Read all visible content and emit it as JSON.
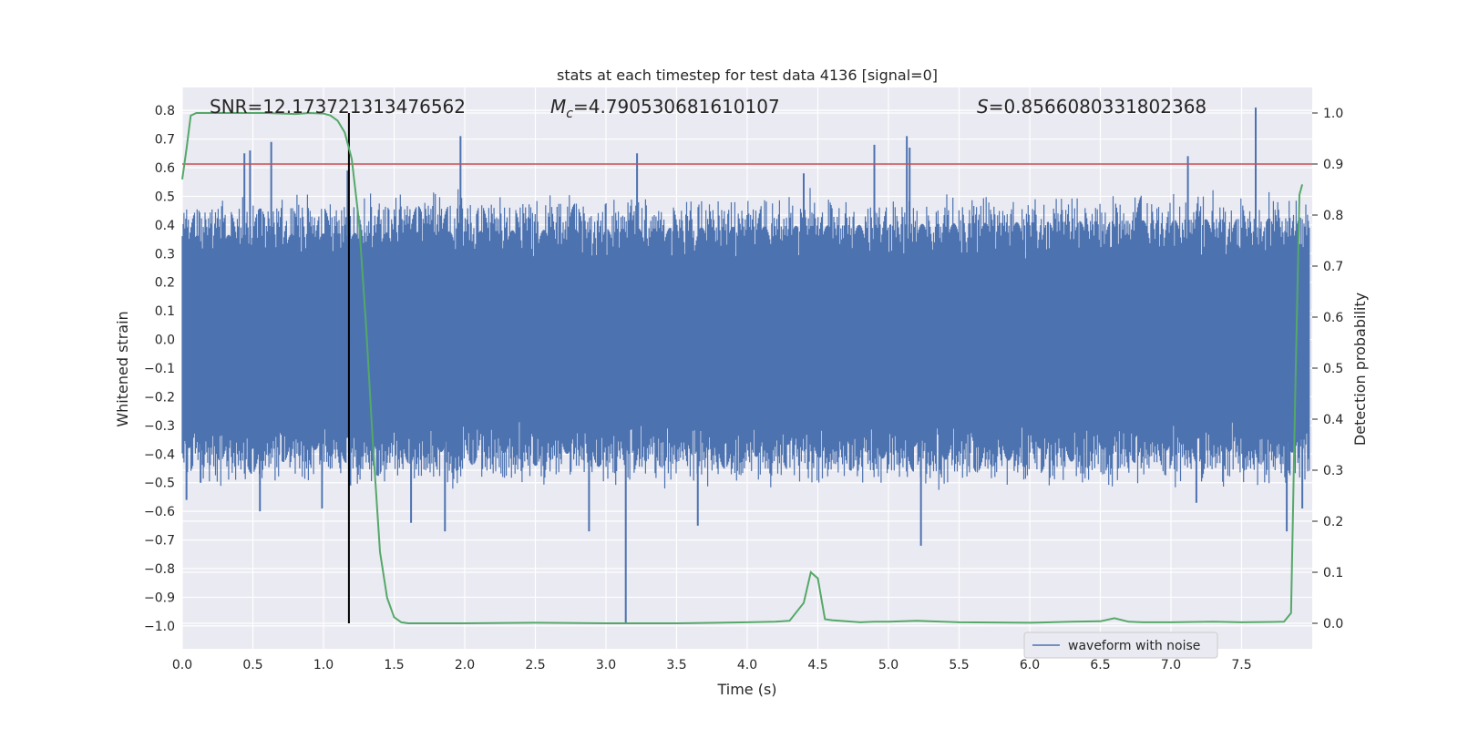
{
  "chart_data": {
    "type": "line",
    "title": "stats at each timestep for test data 4136 [signal=0]",
    "xlabel": "Time (s)",
    "ylabel_left": "Whitened strain",
    "ylabel_right": "Detection probability",
    "xlim": [
      0.0,
      8.0
    ],
    "ylim_left": [
      -1.08,
      0.88
    ],
    "ylim_right": [
      -0.05,
      1.05
    ],
    "x_ticks": [
      "0.0",
      "0.5",
      "1.0",
      "1.5",
      "2.0",
      "2.5",
      "3.0",
      "3.5",
      "4.0",
      "4.5",
      "5.0",
      "5.5",
      "6.0",
      "6.5",
      "7.0",
      "7.5"
    ],
    "x_tick_values": [
      0.0,
      0.5,
      1.0,
      1.5,
      2.0,
      2.5,
      3.0,
      3.5,
      4.0,
      4.5,
      5.0,
      5.5,
      6.0,
      6.5,
      7.0,
      7.5
    ],
    "y_left_ticks": [
      "0.8",
      "0.7",
      "0.6",
      "0.5",
      "0.4",
      "0.3",
      "0.2",
      "0.1",
      "0.0",
      "−0.1",
      "−0.2",
      "−0.3",
      "−0.4",
      "−0.5",
      "−0.6",
      "−0.7",
      "−0.8",
      "−0.9",
      "−1.0"
    ],
    "y_left_tick_values": [
      0.8,
      0.7,
      0.6,
      0.5,
      0.4,
      0.3,
      0.2,
      0.1,
      0.0,
      -0.1,
      -0.2,
      -0.3,
      -0.4,
      -0.5,
      -0.6,
      -0.7,
      -0.8,
      -0.9,
      -1.0
    ],
    "y_right_ticks": [
      "1.0",
      "0.9",
      "0.8",
      "0.7",
      "0.6",
      "0.5",
      "0.4",
      "0.3",
      "0.2",
      "0.1",
      "0.0"
    ],
    "y_right_tick_values": [
      1.0,
      0.9,
      0.8,
      0.7,
      0.6,
      0.5,
      0.4,
      0.3,
      0.2,
      0.1,
      0.0
    ],
    "annotations": {
      "snr": "SNR=12.173721313476562",
      "mc_symbol": "M",
      "mc_sub": "c",
      "mc_value": "=4.790530681610107",
      "s_symbol": "S",
      "s_value": "=0.8566080331802368"
    },
    "threshold": 0.9,
    "vertical_marker_x": 1.18,
    "waveform": {
      "name": "waveform with noise",
      "color": "#4c72b0",
      "dense_band": [
        -0.28,
        0.27
      ],
      "typical_extremes": [
        -0.48,
        0.48
      ],
      "spikes": [
        {
          "x": 0.03,
          "y": -0.56
        },
        {
          "x": 0.13,
          "y": -0.5
        },
        {
          "x": 0.44,
          "y": 0.65
        },
        {
          "x": 0.48,
          "y": 0.66
        },
        {
          "x": 0.55,
          "y": -0.6
        },
        {
          "x": 0.63,
          "y": 0.69
        },
        {
          "x": 0.99,
          "y": -0.59
        },
        {
          "x": 1.17,
          "y": 0.59
        },
        {
          "x": 1.19,
          "y": -0.51
        },
        {
          "x": 1.62,
          "y": -0.64
        },
        {
          "x": 1.86,
          "y": -0.67
        },
        {
          "x": 1.97,
          "y": 0.71
        },
        {
          "x": 2.88,
          "y": -0.67
        },
        {
          "x": 3.14,
          "y": -0.99
        },
        {
          "x": 3.22,
          "y": 0.65
        },
        {
          "x": 3.65,
          "y": -0.65
        },
        {
          "x": 4.4,
          "y": 0.58
        },
        {
          "x": 4.9,
          "y": 0.68
        },
        {
          "x": 5.13,
          "y": 0.71
        },
        {
          "x": 5.15,
          "y": 0.67
        },
        {
          "x": 5.23,
          "y": -0.72
        },
        {
          "x": 7.12,
          "y": 0.64
        },
        {
          "x": 7.18,
          "y": -0.57
        },
        {
          "x": 7.6,
          "y": 0.81
        },
        {
          "x": 7.82,
          "y": -0.67
        },
        {
          "x": 7.93,
          "y": -0.59
        }
      ]
    },
    "probability": {
      "color": "#55a868",
      "x": [
        0.0,
        0.03,
        0.06,
        0.1,
        0.2,
        0.4,
        0.6,
        0.8,
        0.9,
        1.0,
        1.05,
        1.1,
        1.15,
        1.2,
        1.25,
        1.3,
        1.35,
        1.4,
        1.45,
        1.5,
        1.55,
        1.6,
        1.8,
        2.0,
        2.5,
        3.0,
        3.2,
        3.5,
        3.8,
        4.0,
        4.2,
        4.3,
        4.4,
        4.45,
        4.5,
        4.55,
        4.6,
        4.7,
        4.8,
        4.9,
        5.0,
        5.2,
        5.5,
        6.0,
        6.3,
        6.5,
        6.6,
        6.7,
        6.8,
        7.0,
        7.3,
        7.5,
        7.8,
        7.85,
        7.88,
        7.91,
        7.93
      ],
      "y": [
        0.87,
        0.93,
        0.995,
        1.0,
        1.0,
        1.0,
        1.0,
        0.998,
        1.0,
        0.999,
        0.995,
        0.985,
        0.962,
        0.91,
        0.79,
        0.59,
        0.35,
        0.14,
        0.05,
        0.012,
        0.002,
        0.0,
        0.0,
        0.0,
        0.001,
        0.0,
        0.0,
        0.0,
        0.001,
        0.002,
        0.003,
        0.005,
        0.04,
        0.1,
        0.088,
        0.008,
        0.006,
        0.004,
        0.002,
        0.003,
        0.003,
        0.005,
        0.002,
        0.001,
        0.003,
        0.004,
        0.01,
        0.003,
        0.002,
        0.002,
        0.003,
        0.002,
        0.003,
        0.02,
        0.45,
        0.84,
        0.86
      ]
    },
    "legend": {
      "label": "waveform with noise",
      "location": "lower right"
    },
    "grid": true
  },
  "colors": {
    "plot_bg": "#eaeaf2",
    "grid": "#ffffff",
    "threshold": "#c44e52",
    "marker": "#000000"
  }
}
